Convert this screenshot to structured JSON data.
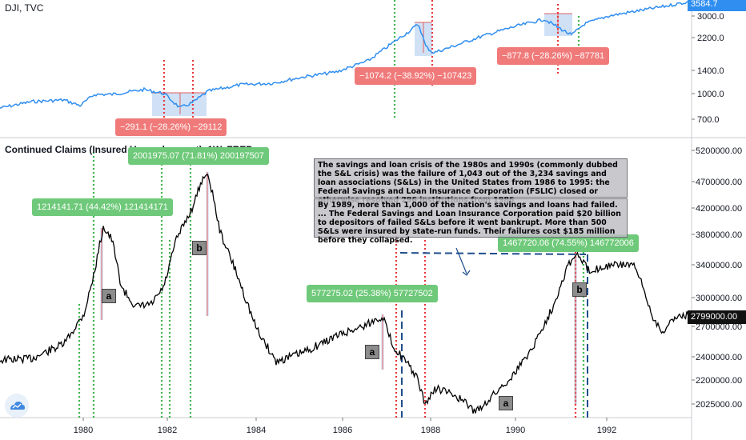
{
  "chart_data": [
    {
      "type": "line",
      "title": "DJI, TVC",
      "ylabels": [
        "3000.0",
        "2200.0",
        "1400.0",
        "1000.0",
        "700.0"
      ],
      "current_value": "3584.7",
      "annotations": [
        {
          "label": "−291.1 (−28.26%) −29112"
        },
        {
          "label": "−1074.2 (−38.92%) −107423"
        },
        {
          "label": "−877.8 (−28.26%) −87781"
        }
      ]
    },
    {
      "type": "line",
      "title": "Continued Claims (Insured Unemployment), 1W, FRED",
      "ylabels": [
        "5200000.00",
        "4700000.00",
        "4200000.00",
        "3800000.00",
        "3400000.00",
        "3000000.00",
        "2700000.00",
        "2400000.00",
        "2200000.00",
        "2025000.00"
      ],
      "current_value": "2799000.00",
      "xlabels": [
        "1980",
        "1982",
        "1984",
        "1986",
        "1988",
        "1990",
        "1992"
      ],
      "annotations": [
        {
          "label": "1214141.71 (44.42%) 121414171"
        },
        {
          "label": "2001975.07 (71.81%) 200197507"
        },
        {
          "label": "577275.02 (25.38%) 57727502"
        },
        {
          "label": "1467720.06 (74.55%) 146772006"
        }
      ],
      "markers": [
        "a",
        "b",
        "a",
        "a",
        "b"
      ],
      "notes": [
        "The savings and loan crisis of the 1980s and 1990s (commonly dubbed the S&L crisis) was the failure of 1,043 out of the 3,234 savings and loan associations (S&Ls) in the United States from 1986 to 1995: the Federal Savings and Loan Insurance Corporation (FSLIC) closed or otherwise resolved 296 institutions from 1986",
        "By 1989, more than 1,000 of the nation's savings and loans had failed. ... The Federal Savings and Loan Insurance Corporation paid $20 billion to depositors of failed S&Ls before it went bankrupt. More than 500 S&Ls were insured by state-run funds. Their failures cost $185 million before they collapsed."
      ]
    }
  ]
}
